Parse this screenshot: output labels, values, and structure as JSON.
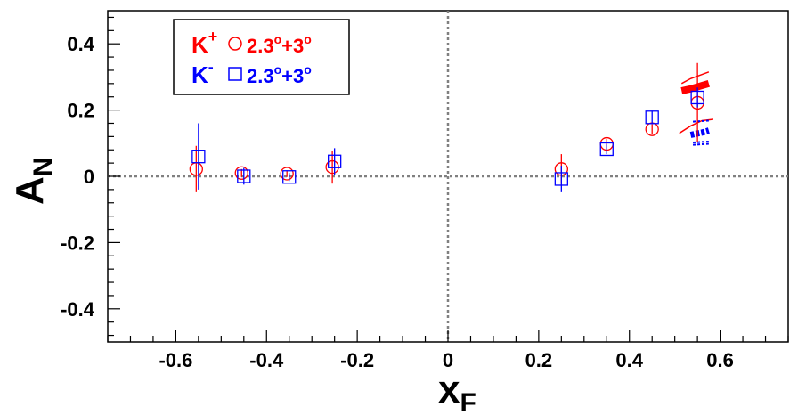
{
  "chart_data": {
    "type": "scatter",
    "title": "",
    "xlabel": {
      "main": "x",
      "sub": "F"
    },
    "ylabel": {
      "main": "A",
      "sub": "N"
    },
    "xlim": [
      -0.75,
      0.75
    ],
    "ylim": [
      -0.5,
      0.5
    ],
    "x_ticks": [
      -0.6,
      -0.4,
      -0.2,
      0,
      0.2,
      0.4,
      0.6
    ],
    "x_tick_labels": [
      "-0.6",
      "-0.4",
      "-0.2",
      "0",
      "0.2",
      "0.4",
      "0.6"
    ],
    "y_ticks": [
      -0.4,
      -0.2,
      0,
      0.2,
      0.4
    ],
    "y_tick_labels": [
      "-0.4",
      "-0.2",
      "0",
      "0.2",
      "0.4"
    ],
    "zero_lines": true,
    "legend_placement": "top-left",
    "series": [
      {
        "name": "K+",
        "legend": {
          "particle": "K",
          "charge": "+",
          "angle_text": "2.3",
          "plus": "+3",
          "deg": "o"
        },
        "marker": "circle",
        "color": "#ff0000",
        "points": [
          {
            "x": -0.555,
            "y": 0.022,
            "err": 0.07
          },
          {
            "x": -0.455,
            "y": 0.01,
            "err": 0.012
          },
          {
            "x": -0.355,
            "y": 0.008,
            "err": 0.01
          },
          {
            "x": -0.255,
            "y": 0.028,
            "err": 0.05
          },
          {
            "x": 0.25,
            "y": 0.022,
            "err": 0.045
          },
          {
            "x": 0.35,
            "y": 0.098,
            "err": 0.015
          },
          {
            "x": 0.45,
            "y": 0.142,
            "err": 0.015
          },
          {
            "x": 0.55,
            "y": 0.222,
            "err": 0.12
          }
        ]
      },
      {
        "name": "K-",
        "legend": {
          "particle": "K",
          "charge": "-",
          "angle_text": "2.3",
          "plus": "+3",
          "deg": "o"
        },
        "marker": "square",
        "color": "#0000ff",
        "points": [
          {
            "x": -0.55,
            "y": 0.06,
            "err": 0.1
          },
          {
            "x": -0.45,
            "y": 0.0,
            "err": 0.025
          },
          {
            "x": -0.35,
            "y": -0.002,
            "err": 0.012
          },
          {
            "x": -0.25,
            "y": 0.045,
            "err": 0.04
          },
          {
            "x": 0.25,
            "y": -0.008,
            "err": 0.04
          },
          {
            "x": 0.35,
            "y": 0.082,
            "err": 0.015
          },
          {
            "x": 0.45,
            "y": 0.178,
            "err": 0.02
          },
          {
            "x": 0.55,
            "y": 0.238,
            "err": 0.03
          }
        ]
      }
    ],
    "bands": [
      {
        "color": "#ff0000",
        "style": "thick",
        "x": [
          0.515,
          0.535,
          0.555,
          0.575
        ],
        "y": [
          0.258,
          0.264,
          0.272,
          0.28
        ]
      },
      {
        "color": "#ff0000",
        "style": "thin",
        "x": [
          0.515,
          0.535,
          0.555,
          0.575
        ],
        "y": [
          0.28,
          0.295,
          0.305,
          0.315
        ]
      },
      {
        "color": "#ff0000",
        "style": "thin",
        "x": [
          0.51,
          0.535,
          0.56,
          0.585
        ],
        "y": [
          0.13,
          0.152,
          0.168,
          0.172
        ]
      },
      {
        "color": "#0000ff",
        "style": "dashed-thick",
        "x": [
          0.535,
          0.545,
          0.56,
          0.575
        ],
        "y": [
          0.125,
          0.128,
          0.132,
          0.138
        ]
      },
      {
        "color": "#0000ff",
        "style": "dashed-thin",
        "x": [
          0.54,
          0.575
        ],
        "y": [
          0.165,
          0.168
        ]
      },
      {
        "color": "#0000ff",
        "style": "dashed-thin",
        "x": [
          0.54,
          0.575
        ],
        "y": [
          0.102,
          0.105
        ]
      },
      {
        "color": "#0000ff",
        "style": "dashed-thin",
        "x": [
          0.54,
          0.575
        ],
        "y": [
          0.095,
          0.098
        ]
      }
    ]
  }
}
